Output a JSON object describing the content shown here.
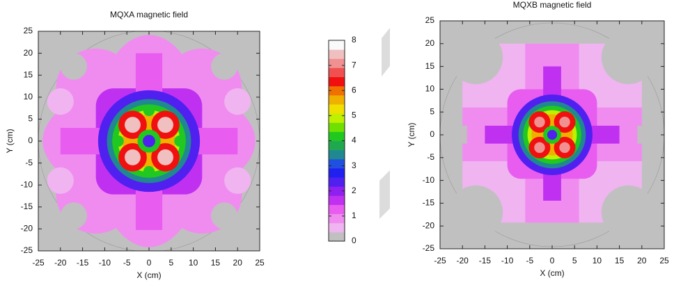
{
  "chart_data": [
    {
      "type": "heatmap",
      "title": "MQXA magnetic field",
      "xlabel": "X (cm)",
      "ylabel": "Y (cm)",
      "xlim": [
        -25,
        25
      ],
      "ylim": [
        -25,
        25
      ],
      "xticks": [
        -25,
        -20,
        -15,
        -10,
        -5,
        0,
        5,
        10,
        15,
        20,
        25
      ],
      "yticks": [
        -25,
        -20,
        -15,
        -10,
        -5,
        0,
        5,
        10,
        15,
        20,
        25
      ]
    },
    {
      "type": "heatmap",
      "title": "MQXB magnetic field",
      "xlabel": "X (cm)",
      "ylabel": "Y (cm)",
      "xlim": [
        -25,
        25
      ],
      "ylim": [
        -25,
        25
      ],
      "xticks": [
        -25,
        -20,
        -15,
        -10,
        -5,
        0,
        5,
        10,
        15,
        20,
        25
      ],
      "yticks": [
        -25,
        -20,
        -15,
        -10,
        -5,
        0,
        5,
        10,
        15,
        20,
        25
      ]
    }
  ],
  "colorbar": {
    "zlim": [
      0,
      8
    ],
    "zticks": [
      0,
      1,
      2,
      3,
      4,
      5,
      6,
      7,
      8
    ],
    "colors": [
      "#c0c0c0",
      "#f0b4f0",
      "#f08cf0",
      "#e85cf0",
      "#c030f0",
      "#9020f0",
      "#5020f0",
      "#2020f0",
      "#2050e0",
      "#208890",
      "#20a850",
      "#20c820",
      "#70e000",
      "#c0f000",
      "#f0e000",
      "#f0b000",
      "#f07000",
      "#f01010",
      "#f05050",
      "#f09090",
      "#f0c0c0",
      "#fafafa"
    ]
  }
}
